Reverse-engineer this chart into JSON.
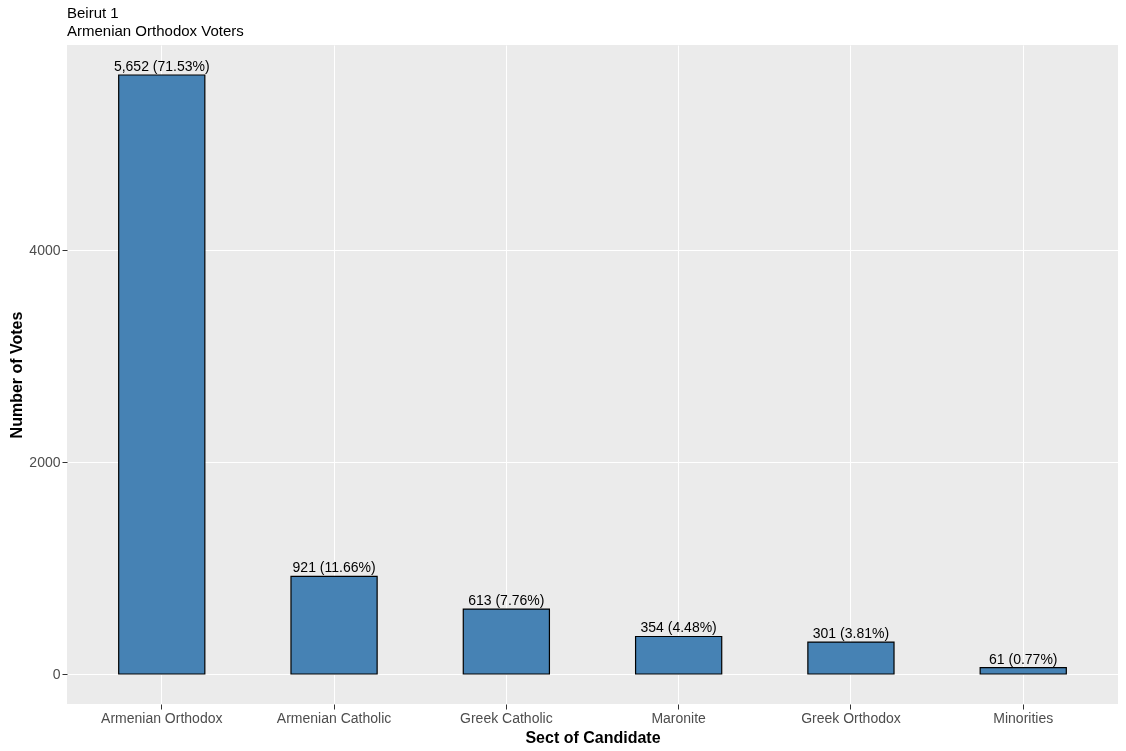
{
  "chart_data": {
    "type": "bar",
    "title": "Beirut 1",
    "subtitle": "Armenian Orthodox Voters",
    "xlabel": "Sect of Candidate",
    "ylabel": "Number of Votes",
    "categories": [
      "Armenian Orthodox",
      "Armenian Catholic",
      "Greek Catholic",
      "Maronite",
      "Greek Orthodox",
      "Minorities"
    ],
    "values": [
      5652,
      921,
      613,
      354,
      301,
      61
    ],
    "value_labels": [
      "5,652 (71.53%)",
      "921 (11.66%)",
      "613 (7.76%)",
      "354 (4.48%)",
      "301 (3.81%)",
      "61 (0.77%)"
    ],
    "color": "#4682b4",
    "ylim": [
      -283,
      5935
    ],
    "yticks": [
      0,
      2000,
      4000
    ],
    "grid": true
  }
}
